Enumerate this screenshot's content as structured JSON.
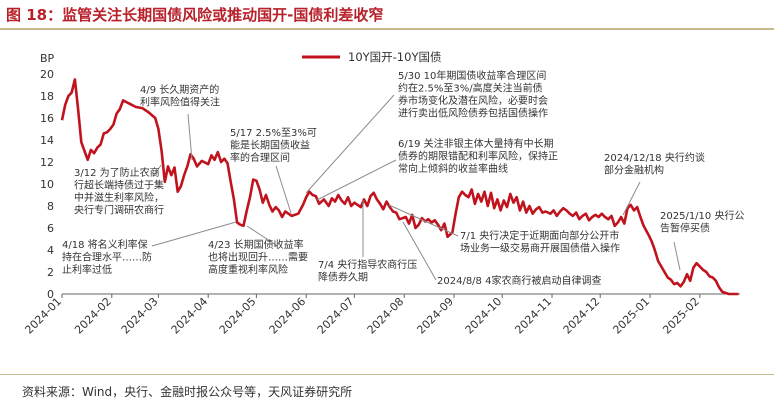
{
  "header": {
    "title": "图 18：监管关注长期国债风险或推动国开-国债利差收窄"
  },
  "footer": {
    "source": "资料来源：Wind，央行、金融时报公众号等，天风证券研究所"
  },
  "colors": {
    "series": "#c0131d",
    "title": "#b8202a",
    "rule": "#c6b98e",
    "annotation": "#333333",
    "arrow": "#8c8c8c"
  },
  "chart_data": {
    "type": "line",
    "ylabel": "BP",
    "ylim": [
      0,
      20
    ],
    "yticks": [
      0,
      2,
      4,
      6,
      8,
      10,
      12,
      14,
      16,
      18,
      20
    ],
    "xlim": [
      "2024-01-01",
      "2025-02-26"
    ],
    "xticks": [
      "2024-01",
      "2024-02",
      "2024-03",
      "2024-04",
      "2024-05",
      "2024-06",
      "2024-07",
      "2024-08",
      "2024-09",
      "2024-10",
      "2024-11",
      "2024-12",
      "2025-01",
      "2025-02"
    ],
    "grid": false,
    "legend": {
      "position": "top-center",
      "entries": [
        "10Y国开-10Y国债"
      ]
    },
    "series": [
      {
        "name": "10Y国开-10Y国债",
        "points": [
          [
            "2024-01-01",
            15.8
          ],
          [
            "2024-01-03",
            17.2
          ],
          [
            "2024-01-05",
            18.0
          ],
          [
            "2024-01-07",
            18.3
          ],
          [
            "2024-01-09",
            19.5
          ],
          [
            "2024-01-11",
            16.8
          ],
          [
            "2024-01-13",
            13.8
          ],
          [
            "2024-01-15",
            13.0
          ],
          [
            "2024-01-17",
            12.2
          ],
          [
            "2024-01-19",
            13.1
          ],
          [
            "2024-01-21",
            12.8
          ],
          [
            "2024-01-23",
            13.3
          ],
          [
            "2024-01-25",
            13.6
          ],
          [
            "2024-01-27",
            14.6
          ],
          [
            "2024-01-29",
            14.7
          ],
          [
            "2024-01-31",
            15.0
          ],
          [
            "2024-02-02",
            15.4
          ],
          [
            "2024-02-04",
            16.4
          ],
          [
            "2024-02-06",
            16.8
          ],
          [
            "2024-02-08",
            17.6
          ],
          [
            "2024-02-12",
            17.3
          ],
          [
            "2024-02-16",
            17.0
          ],
          [
            "2024-02-20",
            16.9
          ],
          [
            "2024-02-24",
            16.5
          ],
          [
            "2024-02-28",
            16.0
          ],
          [
            "2024-03-01",
            15.0
          ],
          [
            "2024-03-03",
            13.0
          ],
          [
            "2024-03-05",
            10.2
          ],
          [
            "2024-03-07",
            11.6
          ],
          [
            "2024-03-09",
            10.8
          ],
          [
            "2024-03-11",
            11.5
          ],
          [
            "2024-03-13",
            9.3
          ],
          [
            "2024-03-15",
            9.8
          ],
          [
            "2024-03-17",
            10.8
          ],
          [
            "2024-03-19",
            11.6
          ],
          [
            "2024-03-21",
            12.7
          ],
          [
            "2024-03-23",
            12.3
          ],
          [
            "2024-03-25",
            11.6
          ],
          [
            "2024-03-28",
            12.1
          ],
          [
            "2024-04-01",
            11.8
          ],
          [
            "2024-04-03",
            12.6
          ],
          [
            "2024-04-05",
            12.2
          ],
          [
            "2024-04-07",
            12.9
          ],
          [
            "2024-04-09",
            12.0
          ],
          [
            "2024-04-11",
            12.3
          ],
          [
            "2024-04-13",
            11.9
          ],
          [
            "2024-04-15",
            10.2
          ],
          [
            "2024-04-17",
            8.6
          ],
          [
            "2024-04-19",
            6.5
          ],
          [
            "2024-04-21",
            6.3
          ],
          [
            "2024-04-23",
            6.2
          ],
          [
            "2024-04-25",
            7.6
          ],
          [
            "2024-04-27",
            8.8
          ],
          [
            "2024-04-29",
            10.4
          ],
          [
            "2024-05-01",
            10.3
          ],
          [
            "2024-05-03",
            9.5
          ],
          [
            "2024-05-05",
            8.3
          ],
          [
            "2024-05-07",
            9.0
          ],
          [
            "2024-05-09",
            8.1
          ],
          [
            "2024-05-11",
            7.5
          ],
          [
            "2024-05-13",
            7.9
          ],
          [
            "2024-05-15",
            7.6
          ],
          [
            "2024-05-17",
            7.0
          ],
          [
            "2024-05-19",
            7.5
          ],
          [
            "2024-05-21",
            7.3
          ],
          [
            "2024-05-23",
            7.1
          ],
          [
            "2024-05-27",
            7.3
          ],
          [
            "2024-05-30",
            8.1
          ],
          [
            "2024-06-01",
            8.8
          ],
          [
            "2024-06-03",
            9.3
          ],
          [
            "2024-06-05",
            9.0
          ],
          [
            "2024-06-07",
            8.9
          ],
          [
            "2024-06-09",
            8.2
          ],
          [
            "2024-06-12",
            8.6
          ],
          [
            "2024-06-15",
            8.0
          ],
          [
            "2024-06-17",
            8.7
          ],
          [
            "2024-06-19",
            8.4
          ],
          [
            "2024-06-21",
            9.0
          ],
          [
            "2024-06-23",
            8.5
          ],
          [
            "2024-06-25",
            8.2
          ],
          [
            "2024-06-27",
            8.8
          ],
          [
            "2024-06-29",
            8.0
          ],
          [
            "2024-07-01",
            8.3
          ],
          [
            "2024-07-03",
            8.1
          ],
          [
            "2024-07-05",
            7.9
          ],
          [
            "2024-07-07",
            8.6
          ],
          [
            "2024-07-09",
            8.0
          ],
          [
            "2024-07-11",
            8.9
          ],
          [
            "2024-07-13",
            9.2
          ],
          [
            "2024-07-15",
            8.6
          ],
          [
            "2024-07-17",
            8.2
          ],
          [
            "2024-07-19",
            7.7
          ],
          [
            "2024-07-21",
            8.4
          ],
          [
            "2024-07-23",
            7.9
          ],
          [
            "2024-07-25",
            7.5
          ],
          [
            "2024-07-27",
            7.4
          ],
          [
            "2024-07-29",
            6.8
          ],
          [
            "2024-07-31",
            6.9
          ],
          [
            "2024-08-02",
            7.0
          ],
          [
            "2024-08-04",
            6.4
          ],
          [
            "2024-08-06",
            7.2
          ],
          [
            "2024-08-08",
            6.0
          ],
          [
            "2024-08-10",
            6.3
          ],
          [
            "2024-08-12",
            6.9
          ],
          [
            "2024-08-14",
            6.6
          ],
          [
            "2024-08-16",
            6.8
          ],
          [
            "2024-08-18",
            6.5
          ],
          [
            "2024-08-20",
            6.7
          ],
          [
            "2024-08-22",
            6.3
          ],
          [
            "2024-08-24",
            5.8
          ],
          [
            "2024-08-26",
            6.4
          ],
          [
            "2024-08-28",
            5.2
          ],
          [
            "2024-08-31",
            5.6
          ],
          [
            "2024-09-02",
            7.3
          ],
          [
            "2024-09-04",
            8.8
          ],
          [
            "2024-09-06",
            9.3
          ],
          [
            "2024-09-08",
            9.0
          ],
          [
            "2024-09-10",
            8.8
          ],
          [
            "2024-09-12",
            9.5
          ],
          [
            "2024-09-14",
            8.2
          ],
          [
            "2024-09-16",
            9.1
          ],
          [
            "2024-09-18",
            8.4
          ],
          [
            "2024-09-20",
            9.3
          ],
          [
            "2024-09-22",
            8.0
          ],
          [
            "2024-09-24",
            9.2
          ],
          [
            "2024-09-26",
            7.8
          ],
          [
            "2024-09-28",
            8.6
          ],
          [
            "2024-09-30",
            7.6
          ],
          [
            "2024-10-02",
            8.5
          ],
          [
            "2024-10-04",
            7.9
          ],
          [
            "2024-10-06",
            9.1
          ],
          [
            "2024-10-08",
            8.3
          ],
          [
            "2024-10-10",
            8.8
          ],
          [
            "2024-10-12",
            7.6
          ],
          [
            "2024-10-14",
            8.4
          ],
          [
            "2024-10-16",
            7.4
          ],
          [
            "2024-10-18",
            8.0
          ],
          [
            "2024-10-20",
            7.3
          ],
          [
            "2024-10-22",
            7.7
          ],
          [
            "2024-10-24",
            7.9
          ],
          [
            "2024-10-26",
            7.4
          ],
          [
            "2024-10-28",
            7.5
          ],
          [
            "2024-10-31",
            7.3
          ],
          [
            "2024-11-02",
            7.6
          ],
          [
            "2024-11-04",
            7.1
          ],
          [
            "2024-11-06",
            7.5
          ],
          [
            "2024-11-08",
            7.8
          ],
          [
            "2024-11-10",
            7.6
          ],
          [
            "2024-11-12",
            7.3
          ],
          [
            "2024-11-14",
            7.1
          ],
          [
            "2024-11-16",
            7.4
          ],
          [
            "2024-11-18",
            6.8
          ],
          [
            "2024-11-20",
            7.1
          ],
          [
            "2024-11-22",
            7.3
          ],
          [
            "2024-11-24",
            6.7
          ],
          [
            "2024-11-26",
            7.0
          ],
          [
            "2024-11-28",
            7.2
          ],
          [
            "2024-11-30",
            7.0
          ],
          [
            "2024-12-02",
            7.3
          ],
          [
            "2024-12-04",
            7.0
          ],
          [
            "2024-12-06",
            6.8
          ],
          [
            "2024-12-08",
            7.1
          ],
          [
            "2024-12-10",
            6.2
          ],
          [
            "2024-12-12",
            6.5
          ],
          [
            "2024-12-14",
            7.0
          ],
          [
            "2024-12-16",
            6.4
          ],
          [
            "2024-12-18",
            7.8
          ],
          [
            "2024-12-20",
            8.1
          ],
          [
            "2024-12-22",
            7.6
          ],
          [
            "2024-12-24",
            7.9
          ],
          [
            "2024-12-26",
            7.0
          ],
          [
            "2024-12-28",
            6.2
          ],
          [
            "2024-12-31",
            5.4
          ],
          [
            "2025-01-02",
            4.8
          ],
          [
            "2025-01-04",
            4.0
          ],
          [
            "2025-01-06",
            3.0
          ],
          [
            "2025-01-08",
            2.5
          ],
          [
            "2025-01-10",
            2.0
          ],
          [
            "2025-01-12",
            1.5
          ],
          [
            "2025-01-14",
            1.3
          ],
          [
            "2025-01-16",
            0.9
          ],
          [
            "2025-01-18",
            1.0
          ],
          [
            "2025-01-20",
            0.7
          ],
          [
            "2025-01-22",
            1.1
          ],
          [
            "2025-01-24",
            1.8
          ],
          [
            "2025-01-26",
            1.2
          ],
          [
            "2025-01-28",
            2.4
          ],
          [
            "2025-01-30",
            2.8
          ],
          [
            "2025-02-01",
            2.5
          ],
          [
            "2025-02-03",
            2.2
          ],
          [
            "2025-02-05",
            2.0
          ],
          [
            "2025-02-07",
            1.6
          ],
          [
            "2025-02-09",
            1.5
          ],
          [
            "2025-02-11",
            1.2
          ],
          [
            "2025-02-13",
            0.6
          ],
          [
            "2025-02-15",
            0.2
          ],
          [
            "2025-02-17",
            0.1
          ],
          [
            "2025-02-19",
            0.0
          ],
          [
            "2025-02-21",
            0.0
          ],
          [
            "2025-02-23",
            0.0
          ],
          [
            "2025-02-25",
            0.0
          ]
        ]
      }
    ],
    "annotations": [
      {
        "date": "2024-03-12",
        "lines": [
          "3/12 为了防止农商",
          "行超长端持债过于集",
          "中并滋生利率风险，",
          "央行专门调研农商行"
        ]
      },
      {
        "date": "2024-04-09",
        "lines": [
          "4/9 长久期资产的",
          "利率风险值得关注"
        ]
      },
      {
        "date": "2024-04-18",
        "lines": [
          "4/18 将名义利率保",
          "持在合理水平……防",
          "止利率过低"
        ]
      },
      {
        "date": "2024-04-23",
        "lines": [
          "4/23 长期国债收益率",
          "也将出现回升……需要",
          "高度重视利率风险"
        ]
      },
      {
        "date": "2024-05-17",
        "lines": [
          "5/17 2.5%至3%可",
          "能是长期国债收益",
          "率的合理区间"
        ]
      },
      {
        "date": "2024-05-30",
        "lines": [
          "5/30 10年期国债收益率合理区间",
          "约在2.5%至3%/高度关注当前债",
          "券市场变化及潜在风险，必要时会",
          "进行卖出低风险债券包括国债操作"
        ]
      },
      {
        "date": "2024-06-19",
        "lines": [
          "6/19 关注非银主体大量持有中长期",
          "债券的期限错配和利率风险，保持正",
          "常向上倾斜的收益率曲线"
        ]
      },
      {
        "date": "2024-07-01",
        "lines": [
          "7/1 央行决定于近期面向部分公开市",
          "场业务一级交易商开展国债借入操作"
        ]
      },
      {
        "date": "2024-07-04",
        "lines": [
          "7/4 央行指导农商行压",
          "降债券久期"
        ]
      },
      {
        "date": "2024-08-08",
        "lines": [
          "2024/8/8 4家农商行被启动自律调查"
        ]
      },
      {
        "date": "2024-12-18",
        "lines": [
          "2024/12/18 央行约谈",
          "部分金融机构"
        ]
      },
      {
        "date": "2025-01-10",
        "lines": [
          "2025/1/10 央行公",
          "告暂停买债"
        ]
      }
    ]
  }
}
